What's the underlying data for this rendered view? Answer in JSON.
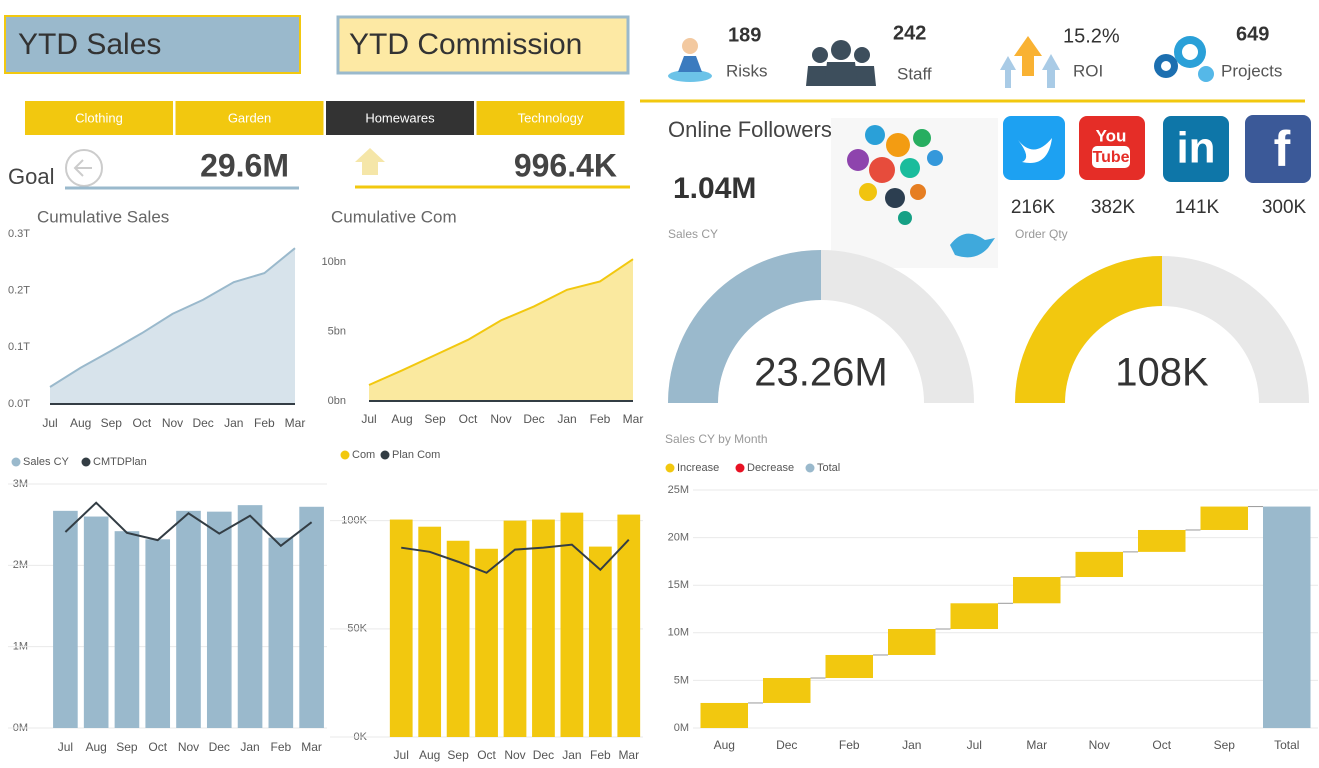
{
  "header": {
    "sales_title": "YTD Sales",
    "commission_title": "YTD Commission"
  },
  "kpis": [
    {
      "value": "189",
      "label": "Risks"
    },
    {
      "value": "242",
      "label": "Staff"
    },
    {
      "value": "15.2%",
      "label": "ROI"
    },
    {
      "value": "649",
      "label": "Projects"
    }
  ],
  "tabs": [
    "Clothing",
    "Garden",
    "Homewares",
    "Technology"
  ],
  "selected_tab": 2,
  "goal": {
    "label": "Goal",
    "sales": "29.6M",
    "commission": "996.4K"
  },
  "followers": {
    "title": "Online Followers",
    "total": "1.04M",
    "total_label": "Sales CY",
    "qty_label": "Order Qty",
    "counts": [
      "216K",
      "382K",
      "141K",
      "300K"
    ],
    "logos": {
      "youtube": [
        "You",
        "Tube"
      ],
      "linkedin": "in",
      "facebook": "f"
    }
  },
  "chart_data": [
    {
      "type": "area",
      "title": "Cumulative Sales",
      "categories": [
        "Jul",
        "Aug",
        "Sep",
        "Oct",
        "Nov",
        "Dec",
        "Jan",
        "Feb",
        "Mar"
      ],
      "series": [
        {
          "color": "#9ab9cc",
          "values": [
            0.03,
            0.064,
            0.094,
            0.125,
            0.159,
            0.184,
            0.215,
            0.231,
            0.275
          ]
        }
      ],
      "ylim": [
        0,
        0.3
      ],
      "yticks": [
        {
          "value": 0,
          "label": "0.0T"
        },
        {
          "value": 0.1,
          "label": "0.1T"
        },
        {
          "value": 0.2,
          "label": "0.2T"
        },
        {
          "value": 0.3,
          "label": "0.3T"
        }
      ],
      "grid": false
    },
    {
      "type": "area",
      "title": "Cumulative Com",
      "categories": [
        "Jul",
        "Aug",
        "Sep",
        "Oct",
        "Nov",
        "Dec",
        "Jan",
        "Feb",
        "Mar"
      ],
      "series": [
        {
          "color": "#f2c80f",
          "values": [
            1.15,
            2.2,
            3.3,
            4.4,
            5.8,
            6.8,
            8.0,
            8.6,
            10.2
          ]
        }
      ],
      "ylim": [
        0,
        10.5
      ],
      "yticks": [
        {
          "value": 0,
          "label": "0bn"
        },
        {
          "value": 5,
          "label": "5bn"
        },
        {
          "value": 10,
          "label": "10bn"
        }
      ],
      "grid": false
    },
    {
      "type": "combo",
      "categories": [
        "Jul",
        "Aug",
        "Sep",
        "Oct",
        "Nov",
        "Dec",
        "Jan",
        "Feb",
        "Mar"
      ],
      "series": [
        {
          "name": "Sales CY",
          "type": "bar",
          "color": "#9ab9cc",
          "values": [
            2.67,
            2.6,
            2.42,
            2.32,
            2.67,
            2.66,
            2.74,
            2.34,
            2.72
          ]
        },
        {
          "name": "CMTDPlan",
          "type": "line",
          "color": "#333d44",
          "values": [
            2.41,
            2.77,
            2.4,
            2.31,
            2.64,
            2.39,
            2.61,
            2.24,
            2.53
          ]
        }
      ],
      "ylim": [
        0,
        3
      ],
      "yticks": [
        {
          "value": 0,
          "label": "0M"
        },
        {
          "value": 1,
          "label": "1M"
        },
        {
          "value": 2,
          "label": "2M"
        },
        {
          "value": 3,
          "label": "3M"
        }
      ],
      "grid": true
    },
    {
      "type": "combo",
      "categories": [
        "Jul",
        "Aug",
        "Sep",
        "Oct",
        "Nov",
        "Dec",
        "Jan",
        "Feb",
        "Mar"
      ],
      "series": [
        {
          "name": "Com",
          "type": "bar",
          "color": "#f2c80f",
          "values": [
            100.5,
            97.2,
            90.7,
            87.0,
            100.0,
            100.5,
            103.7,
            88.0,
            102.8
          ]
        },
        {
          "name": "Plan Com",
          "type": "line",
          "color": "#333d44",
          "values": [
            87.5,
            85.6,
            81.0,
            75.9,
            86.6,
            87.5,
            88.9,
            77.3,
            91.2
          ]
        }
      ],
      "ylim": [
        0,
        110
      ],
      "yticks": [
        {
          "value": 0,
          "label": "0K"
        },
        {
          "value": 50,
          "label": "50K"
        },
        {
          "value": 100,
          "label": "100K"
        }
      ],
      "grid": true
    },
    {
      "type": "waterfall",
      "title": "Sales CY by Month",
      "categories": [
        "Aug",
        "Dec",
        "Feb",
        "Jan",
        "Jul",
        "Mar",
        "Nov",
        "Oct",
        "Sep",
        "Total"
      ],
      "series": [
        {
          "name": "Increase",
          "color": "#f2c80f",
          "values": [
            2.63,
            2.62,
            2.42,
            2.73,
            2.7,
            2.76,
            2.64,
            2.3,
            2.46,
            null
          ]
        },
        {
          "name": "Decrease",
          "color": "#e81123",
          "values": [
            null,
            null,
            null,
            null,
            null,
            null,
            null,
            null,
            null,
            null
          ]
        },
        {
          "name": "Total",
          "color": "#9ab9cc",
          "values": [
            null,
            null,
            null,
            null,
            null,
            null,
            null,
            null,
            null,
            23.26
          ]
        }
      ],
      "ylim": [
        0,
        25
      ],
      "yticks": [
        {
          "value": 0,
          "label": "0M"
        },
        {
          "value": 5,
          "label": "5M"
        },
        {
          "value": 10,
          "label": "10M"
        },
        {
          "value": 15,
          "label": "15M"
        },
        {
          "value": 20,
          "label": "20M"
        },
        {
          "value": 25,
          "label": "25M"
        }
      ],
      "grid": true
    },
    {
      "type": "gauge",
      "values": [
        23.26
      ],
      "value_labels": [
        "23.26M"
      ],
      "ylim": [
        0,
        46.52
      ],
      "color": "#9ab9cc"
    },
    {
      "type": "gauge",
      "values": [
        108
      ],
      "value_labels": [
        "108K"
      ],
      "ylim": [
        0,
        216
      ],
      "color": "#f2c80f"
    }
  ]
}
